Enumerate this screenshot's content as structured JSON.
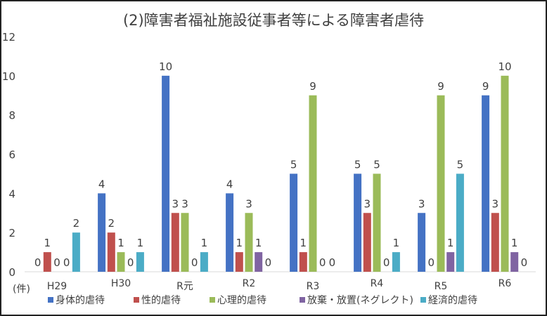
{
  "chart_data": {
    "type": "bar",
    "title": "(2)障害者福祉施設従事者等による障害者虐待",
    "ylabel": "(件)",
    "categories": [
      "H29",
      "H30",
      "R元",
      "R2",
      "R3",
      "R4",
      "R5",
      "R6"
    ],
    "ylim": [
      0,
      12
    ],
    "yticks": [
      0,
      2,
      4,
      6,
      8,
      10,
      12
    ],
    "grid": false,
    "legend": "bottom",
    "series": [
      {
        "name": "身体的虐待",
        "color": "#4472C4",
        "values": [
          0,
          4,
          10,
          4,
          5,
          5,
          3,
          9
        ]
      },
      {
        "name": "性的虐待",
        "color": "#C0504D",
        "values": [
          1,
          2,
          3,
          1,
          1,
          3,
          0,
          3
        ]
      },
      {
        "name": "心理的虐待",
        "color": "#9BBB59",
        "values": [
          0,
          1,
          3,
          3,
          9,
          5,
          9,
          10
        ]
      },
      {
        "name": "放棄・放置(ネグレクト)",
        "color": "#8064A2",
        "values": [
          0,
          0,
          0,
          1,
          0,
          0,
          1,
          1
        ]
      },
      {
        "name": "経済的虐待",
        "color": "#4BACC6",
        "values": [
          2,
          1,
          1,
          0,
          0,
          1,
          5,
          0
        ]
      }
    ]
  }
}
